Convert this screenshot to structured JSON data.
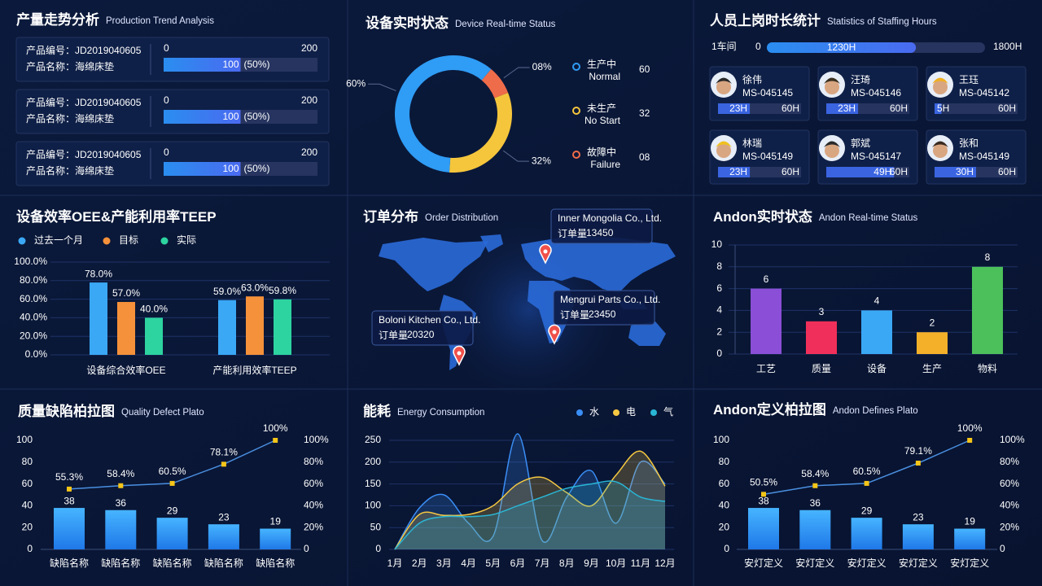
{
  "production": {
    "title": "产量走势分析",
    "subtitle": "Production Trend Analysis",
    "items": [
      {
        "code": "产品编号：JD2019040605",
        "name": "产品名称：海绵床垫",
        "min": 0,
        "max": 200,
        "value": 100,
        "percent": "(50%)"
      },
      {
        "code": "产品编号：JD2019040605",
        "name": "产品名称：海绵床垫",
        "min": 0,
        "max": 200,
        "value": 100,
        "percent": "(50%)"
      },
      {
        "code": "产品编号：JD2019040605",
        "name": "产品名称：海绵床垫",
        "min": 0,
        "max": 200,
        "value": 100,
        "percent": "(50%)"
      }
    ]
  },
  "staffing": {
    "title": "人员上岗时长统计",
    "subtitle": "Statistics of Staffing Hours",
    "workshop": {
      "name": "1车间",
      "min": 0,
      "value": 1230,
      "value_label": "1230H",
      "max": 1800,
      "max_label": "1800H"
    },
    "workers": [
      {
        "name": "徐伟",
        "id": "MS-045145",
        "hours": 23,
        "hours_label": "23H",
        "max": 60,
        "max_label": "60H"
      },
      {
        "name": "汪琦",
        "id": "MS-045146",
        "hours": 23,
        "hours_label": "23H",
        "max": 60,
        "max_label": "60H"
      },
      {
        "name": "王珏",
        "id": "MS-045142",
        "hours": 5,
        "hours_label": "5H",
        "max": 60,
        "max_label": "60H"
      },
      {
        "name": "林瑞",
        "id": "MS-045149",
        "hours": 23,
        "hours_label": "23H",
        "max": 60,
        "max_label": "60H"
      },
      {
        "name": "郭斌",
        "id": "MS-045147",
        "hours": 49,
        "hours_label": "49H",
        "max": 60,
        "max_label": "60H"
      },
      {
        "name": "张和",
        "id": "MS-045149",
        "hours": 30,
        "hours_label": "30H",
        "max": 60,
        "max_label": "60H"
      }
    ]
  },
  "order_distribution": {
    "title": "订单分布",
    "subtitle": "Order Distribution",
    "callouts": [
      {
        "company": "Inner Mongolia Co., Ltd.",
        "label": "订单量",
        "amount": 13450
      },
      {
        "company": "Mengrui  Parts Co., Ltd.",
        "label": "订单量",
        "amount": 23450
      },
      {
        "company": "Boloni Kitchen Co., Ltd.",
        "label": "订单量",
        "amount": 20320
      }
    ]
  },
  "chart_data": [
    {
      "type": "pie",
      "title": "设备实时状态",
      "subtitle": "Device Real-time Status",
      "donut": true,
      "categories": [
        "生产中",
        "未生产",
        "故障中"
      ],
      "category_subtitles": [
        "Normal",
        "No Start",
        "Failure"
      ],
      "values": [
        60,
        32,
        8
      ],
      "value_labels": [
        "60%",
        "32%",
        "08%"
      ],
      "count_labels": [
        "60",
        "32",
        "08"
      ],
      "colors": [
        "#2f9cf5",
        "#f5c63c",
        "#ef6c4a"
      ]
    },
    {
      "type": "bar",
      "title": "设备效率OEE&产能利用率TEEP",
      "legend": "top-left",
      "grid": true,
      "categories": [
        "设备综合效率OEE",
        "产能利用效率TEEP"
      ],
      "series": [
        {
          "name": "过去一个月",
          "color": "#3aa8f5",
          "values": [
            78,
            59
          ],
          "value_labels": [
            "78.0%",
            "59.0%"
          ]
        },
        {
          "name": "目标",
          "color": "#f5913a",
          "values": [
            57,
            63
          ],
          "value_labels": [
            "57.0%",
            "63.0%"
          ]
        },
        {
          "name": "实际",
          "color": "#2dd4a0",
          "values": [
            40,
            59.8
          ],
          "value_labels": [
            "40.0%",
            "59.8%"
          ]
        }
      ],
      "ylim": [
        0,
        100
      ],
      "yticks": [
        {
          "value": 0,
          "label": "0.0%"
        },
        {
          "value": 20,
          "label": "20.0%"
        },
        {
          "value": 40,
          "label": "40.0%"
        },
        {
          "value": 60,
          "label": "60.0%"
        },
        {
          "value": 80,
          "label": "80.0%"
        },
        {
          "value": 100,
          "label": "100.0%"
        }
      ]
    },
    {
      "type": "bar",
      "title": "Andon实时状态",
      "subtitle": "Andon Real-time Status",
      "grid": true,
      "categories": [
        "工艺",
        "质量",
        "设备",
        "生产",
        "物料"
      ],
      "values": [
        6,
        3,
        4,
        2,
        8
      ],
      "colors": [
        "#8a4fd6",
        "#f0305a",
        "#3aa8f5",
        "#f5b02a",
        "#4cc05a"
      ],
      "ylim": [
        0,
        10
      ],
      "yticks": [
        0,
        2,
        4,
        6,
        8,
        10
      ]
    },
    {
      "type": "pareto",
      "title": "质量缺陷柏拉图",
      "subtitle": "Quality Defect Plato",
      "categories": [
        "缺陷名称",
        "缺陷名称",
        "缺陷名称",
        "缺陷名称",
        "缺陷名称"
      ],
      "series": [
        {
          "type": "bar",
          "color": "#3aa0f5",
          "values": [
            38,
            36,
            29,
            23,
            19
          ]
        },
        {
          "type": "line",
          "axis": "y2",
          "color": "#4a8fe0",
          "marker_color": "#f5c518",
          "values": [
            55.3,
            58.4,
            60.5,
            78.1,
            100
          ],
          "value_labels": [
            "55.3%",
            "58.4%",
            "60.5%",
            "78.1%",
            "100%"
          ]
        }
      ],
      "ylim": [
        0,
        100
      ],
      "yticks": [
        0,
        20,
        40,
        60,
        80,
        100
      ],
      "y2lim": [
        0,
        100
      ],
      "y2ticks": [
        0,
        {
          "value": 20,
          "label": "20%"
        },
        {
          "value": 40,
          "label": "40%"
        },
        {
          "value": 60,
          "label": "60%"
        },
        {
          "value": 80,
          "label": "80%"
        },
        {
          "value": 100,
          "label": "100%"
        }
      ]
    },
    {
      "type": "line",
      "title": "能耗",
      "subtitle": "Energy Consumption",
      "legend": "top-right",
      "smooth": true,
      "area": true,
      "categories": [
        "1月",
        "2月",
        "3月",
        "4月",
        "5月",
        "6月",
        "7月",
        "8月",
        "9月",
        "10月",
        "11月",
        "12月"
      ],
      "series": [
        {
          "name": "水",
          "color": "#3a8ef5",
          "values": [
            0,
            95,
            125,
            60,
            30,
            265,
            20,
            120,
            180,
            60,
            200,
            150
          ]
        },
        {
          "name": "电",
          "color": "#f5c842",
          "values": [
            0,
            80,
            78,
            80,
            100,
            150,
            165,
            130,
            100,
            170,
            225,
            145
          ]
        },
        {
          "name": "气",
          "color": "#2ab6d6",
          "values": [
            0,
            60,
            75,
            75,
            80,
            100,
            120,
            140,
            150,
            155,
            120,
            110
          ]
        }
      ],
      "ylim": [
        0,
        250
      ],
      "yticks": [
        0,
        50,
        100,
        150,
        200,
        250
      ]
    },
    {
      "type": "pareto",
      "title": "Andon定义柏拉图",
      "subtitle": "Andon Defines Plato",
      "categories": [
        "安灯定义",
        "安灯定义",
        "安灯定义",
        "安灯定义",
        "安灯定义"
      ],
      "series": [
        {
          "type": "bar",
          "color": "#3aa0f5",
          "values": [
            38,
            36,
            29,
            23,
            19
          ]
        },
        {
          "type": "line",
          "axis": "y2",
          "color": "#4a8fe0",
          "marker_color": "#f5c518",
          "values": [
            50.5,
            58.4,
            60.5,
            79.1,
            100
          ],
          "value_labels": [
            "50.5%",
            "58.4%",
            "60.5%",
            "79.1%",
            "100%"
          ]
        }
      ],
      "ylim": [
        0,
        100
      ],
      "yticks": [
        0,
        20,
        40,
        60,
        80,
        100
      ],
      "y2lim": [
        0,
        100
      ],
      "y2ticks": [
        0,
        {
          "value": 20,
          "label": "20%"
        },
        {
          "value": 40,
          "label": "40%"
        },
        {
          "value": 60,
          "label": "60%"
        },
        {
          "value": 80,
          "label": "80%"
        },
        {
          "value": 100,
          "label": "100%"
        }
      ]
    }
  ]
}
